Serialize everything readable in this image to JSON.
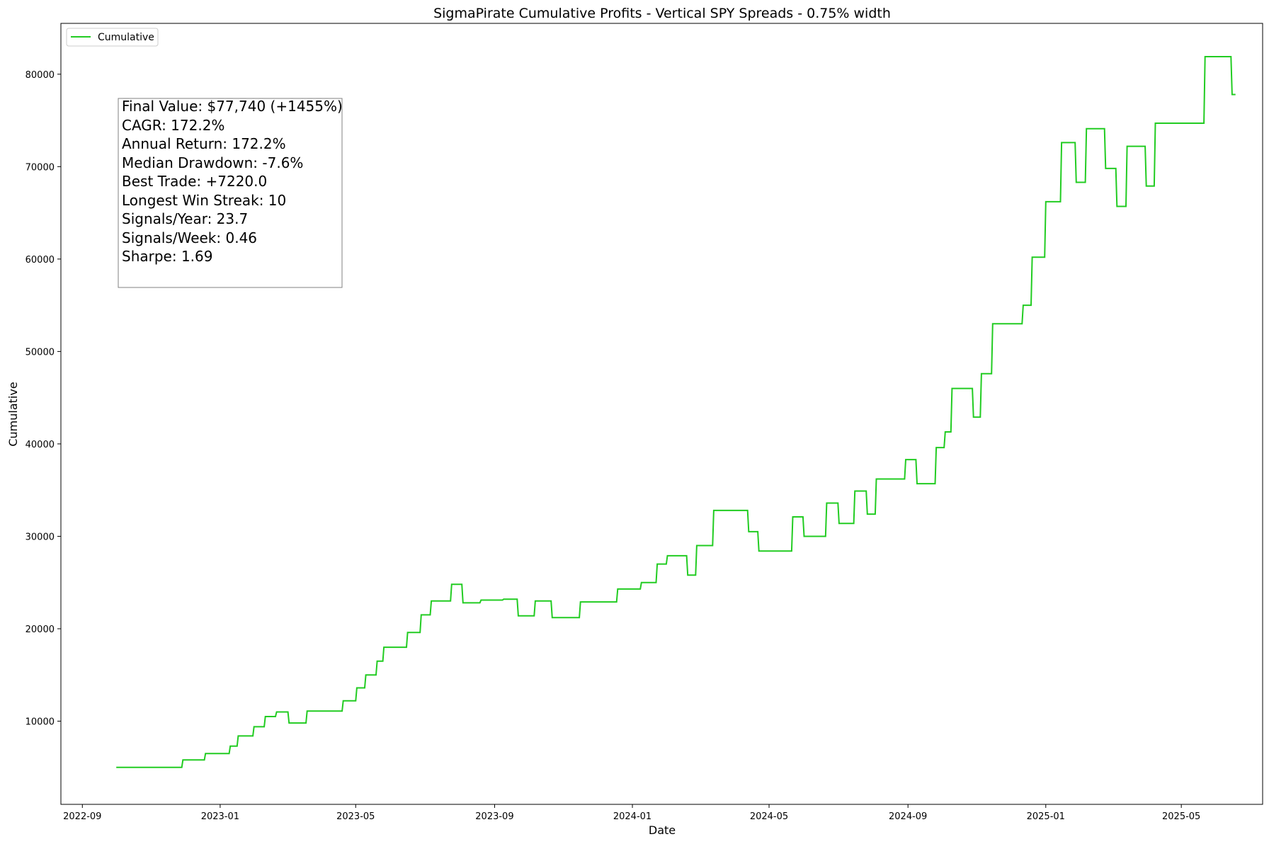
{
  "chart_data": {
    "type": "line",
    "title": "SigmaPirate Cumulative Profits - Vertical SPY Spreads - 0.75% width",
    "xlabel": "Date",
    "ylabel": "Cumulative",
    "x_range": [
      "2022-08-13",
      "2025-07-12"
    ],
    "ylim": [
      1000,
      85500
    ],
    "x_ticks": [
      "2022-09-01",
      "2023-01-01",
      "2023-05-01",
      "2023-09-01",
      "2024-01-01",
      "2024-05-01",
      "2024-09-01",
      "2025-01-01",
      "2025-05-01"
    ],
    "x_tick_labels": [
      "2022-09",
      "2023-01",
      "2023-05",
      "2023-09",
      "2024-01",
      "2024-05",
      "2024-09",
      "2025-01",
      "2025-05"
    ],
    "y_ticks": [
      10000,
      20000,
      30000,
      40000,
      50000,
      60000,
      70000,
      80000
    ],
    "y_tick_labels": [
      "10000",
      "20000",
      "30000",
      "40000",
      "50000",
      "60000",
      "70000",
      "80000"
    ],
    "grid": false,
    "legend": {
      "position": "top-left",
      "entries": [
        "Cumulative"
      ]
    },
    "series": [
      {
        "name": "Cumulative",
        "color": "#22cc22",
        "points": [
          [
            "2022-10-01",
            5000
          ],
          [
            "2022-11-28",
            5000
          ],
          [
            "2022-11-29",
            5800
          ],
          [
            "2022-12-18",
            5800
          ],
          [
            "2022-12-19",
            6500
          ],
          [
            "2023-01-09",
            6500
          ],
          [
            "2023-01-10",
            7300
          ],
          [
            "2023-01-16",
            7300
          ],
          [
            "2023-01-17",
            8400
          ],
          [
            "2023-01-30",
            8400
          ],
          [
            "2023-01-31",
            9400
          ],
          [
            "2023-02-09",
            9400
          ],
          [
            "2023-02-10",
            10500
          ],
          [
            "2023-02-19",
            10500
          ],
          [
            "2023-02-20",
            11000
          ],
          [
            "2023-03-02",
            11000
          ],
          [
            "2023-03-03",
            9800
          ],
          [
            "2023-03-18",
            9800
          ],
          [
            "2023-03-19",
            11100
          ],
          [
            "2023-04-19",
            11100
          ],
          [
            "2023-04-20",
            12200
          ],
          [
            "2023-05-01",
            12200
          ],
          [
            "2023-05-02",
            13600
          ],
          [
            "2023-05-09",
            13600
          ],
          [
            "2023-05-10",
            15000
          ],
          [
            "2023-05-19",
            15000
          ],
          [
            "2023-05-20",
            16500
          ],
          [
            "2023-05-25",
            16500
          ],
          [
            "2023-05-26",
            18000
          ],
          [
            "2023-06-15",
            18000
          ],
          [
            "2023-06-16",
            19600
          ],
          [
            "2023-06-27",
            19600
          ],
          [
            "2023-06-28",
            21500
          ],
          [
            "2023-07-06",
            21500
          ],
          [
            "2023-07-07",
            23000
          ],
          [
            "2023-07-24",
            23000
          ],
          [
            "2023-07-25",
            24800
          ],
          [
            "2023-08-03",
            24800
          ],
          [
            "2023-08-04",
            22800
          ],
          [
            "2023-08-19",
            22800
          ],
          [
            "2023-08-20",
            23100
          ],
          [
            "2023-09-08",
            23100
          ],
          [
            "2023-09-09",
            23200
          ],
          [
            "2023-09-21",
            23200
          ],
          [
            "2023-09-22",
            21400
          ],
          [
            "2023-10-06",
            21400
          ],
          [
            "2023-10-07",
            23000
          ],
          [
            "2023-10-21",
            23000
          ],
          [
            "2023-10-22",
            21200
          ],
          [
            "2023-11-15",
            21200
          ],
          [
            "2023-11-16",
            22900
          ],
          [
            "2023-12-18",
            22900
          ],
          [
            "2023-12-19",
            24300
          ],
          [
            "2024-01-08",
            24300
          ],
          [
            "2024-01-09",
            25000
          ],
          [
            "2024-01-22",
            25000
          ],
          [
            "2024-01-23",
            27000
          ],
          [
            "2024-01-31",
            27000
          ],
          [
            "2024-02-01",
            27900
          ],
          [
            "2024-02-18",
            27900
          ],
          [
            "2024-02-19",
            25800
          ],
          [
            "2024-02-26",
            25800
          ],
          [
            "2024-02-27",
            29000
          ],
          [
            "2024-03-12",
            29000
          ],
          [
            "2024-03-13",
            32800
          ],
          [
            "2024-04-12",
            32800
          ],
          [
            "2024-04-13",
            30500
          ],
          [
            "2024-04-21",
            30500
          ],
          [
            "2024-04-22",
            28400
          ],
          [
            "2024-05-21",
            28400
          ],
          [
            "2024-05-22",
            32100
          ],
          [
            "2024-05-31",
            32100
          ],
          [
            "2024-06-01",
            30000
          ],
          [
            "2024-06-20",
            30000
          ],
          [
            "2024-06-21",
            33600
          ],
          [
            "2024-07-01",
            33600
          ],
          [
            "2024-07-02",
            31400
          ],
          [
            "2024-07-15",
            31400
          ],
          [
            "2024-07-16",
            34900
          ],
          [
            "2024-07-26",
            34900
          ],
          [
            "2024-07-27",
            32400
          ],
          [
            "2024-08-03",
            32400
          ],
          [
            "2024-08-04",
            36200
          ],
          [
            "2024-08-29",
            36200
          ],
          [
            "2024-08-30",
            38300
          ],
          [
            "2024-09-08",
            38300
          ],
          [
            "2024-09-09",
            35700
          ],
          [
            "2024-09-25",
            35700
          ],
          [
            "2024-09-26",
            39600
          ],
          [
            "2024-10-03",
            39600
          ],
          [
            "2024-10-04",
            41300
          ],
          [
            "2024-10-09",
            41300
          ],
          [
            "2024-10-10",
            46000
          ],
          [
            "2024-10-28",
            46000
          ],
          [
            "2024-10-29",
            42900
          ],
          [
            "2024-11-04",
            42900
          ],
          [
            "2024-11-05",
            47600
          ],
          [
            "2024-11-14",
            47600
          ],
          [
            "2024-11-15",
            53000
          ],
          [
            "2024-12-11",
            53000
          ],
          [
            "2024-12-12",
            55000
          ],
          [
            "2024-12-19",
            55000
          ],
          [
            "2024-12-20",
            60200
          ],
          [
            "2024-12-31",
            60200
          ],
          [
            "2025-01-01",
            66200
          ],
          [
            "2025-01-14",
            66200
          ],
          [
            "2025-01-15",
            72600
          ],
          [
            "2025-01-27",
            72600
          ],
          [
            "2025-01-28",
            68300
          ],
          [
            "2025-02-05",
            68300
          ],
          [
            "2025-02-06",
            74100
          ],
          [
            "2025-02-22",
            74100
          ],
          [
            "2025-02-23",
            69800
          ],
          [
            "2025-03-04",
            69800
          ],
          [
            "2025-03-05",
            65700
          ],
          [
            "2025-03-13",
            65700
          ],
          [
            "2025-03-14",
            72200
          ],
          [
            "2025-03-30",
            72200
          ],
          [
            "2025-03-31",
            67900
          ],
          [
            "2025-04-07",
            67900
          ],
          [
            "2025-04-08",
            74700
          ],
          [
            "2025-05-21",
            74700
          ],
          [
            "2025-05-22",
            81900
          ],
          [
            "2025-06-14",
            81900
          ],
          [
            "2025-06-15",
            77800
          ],
          [
            "2025-06-18",
            77800
          ]
        ]
      }
    ]
  },
  "stats_box": {
    "lines": [
      "Final Value: $77,740 (+1455%)",
      "CAGR: 172.2%",
      "Annual Return: 172.2%",
      "Median Drawdown: -7.6%",
      "Best Trade: +7220.0",
      "Longest Win Streak: 10",
      "Signals/Year: 23.7",
      "Signals/Week: 0.46",
      "Sharpe: 1.69"
    ]
  }
}
